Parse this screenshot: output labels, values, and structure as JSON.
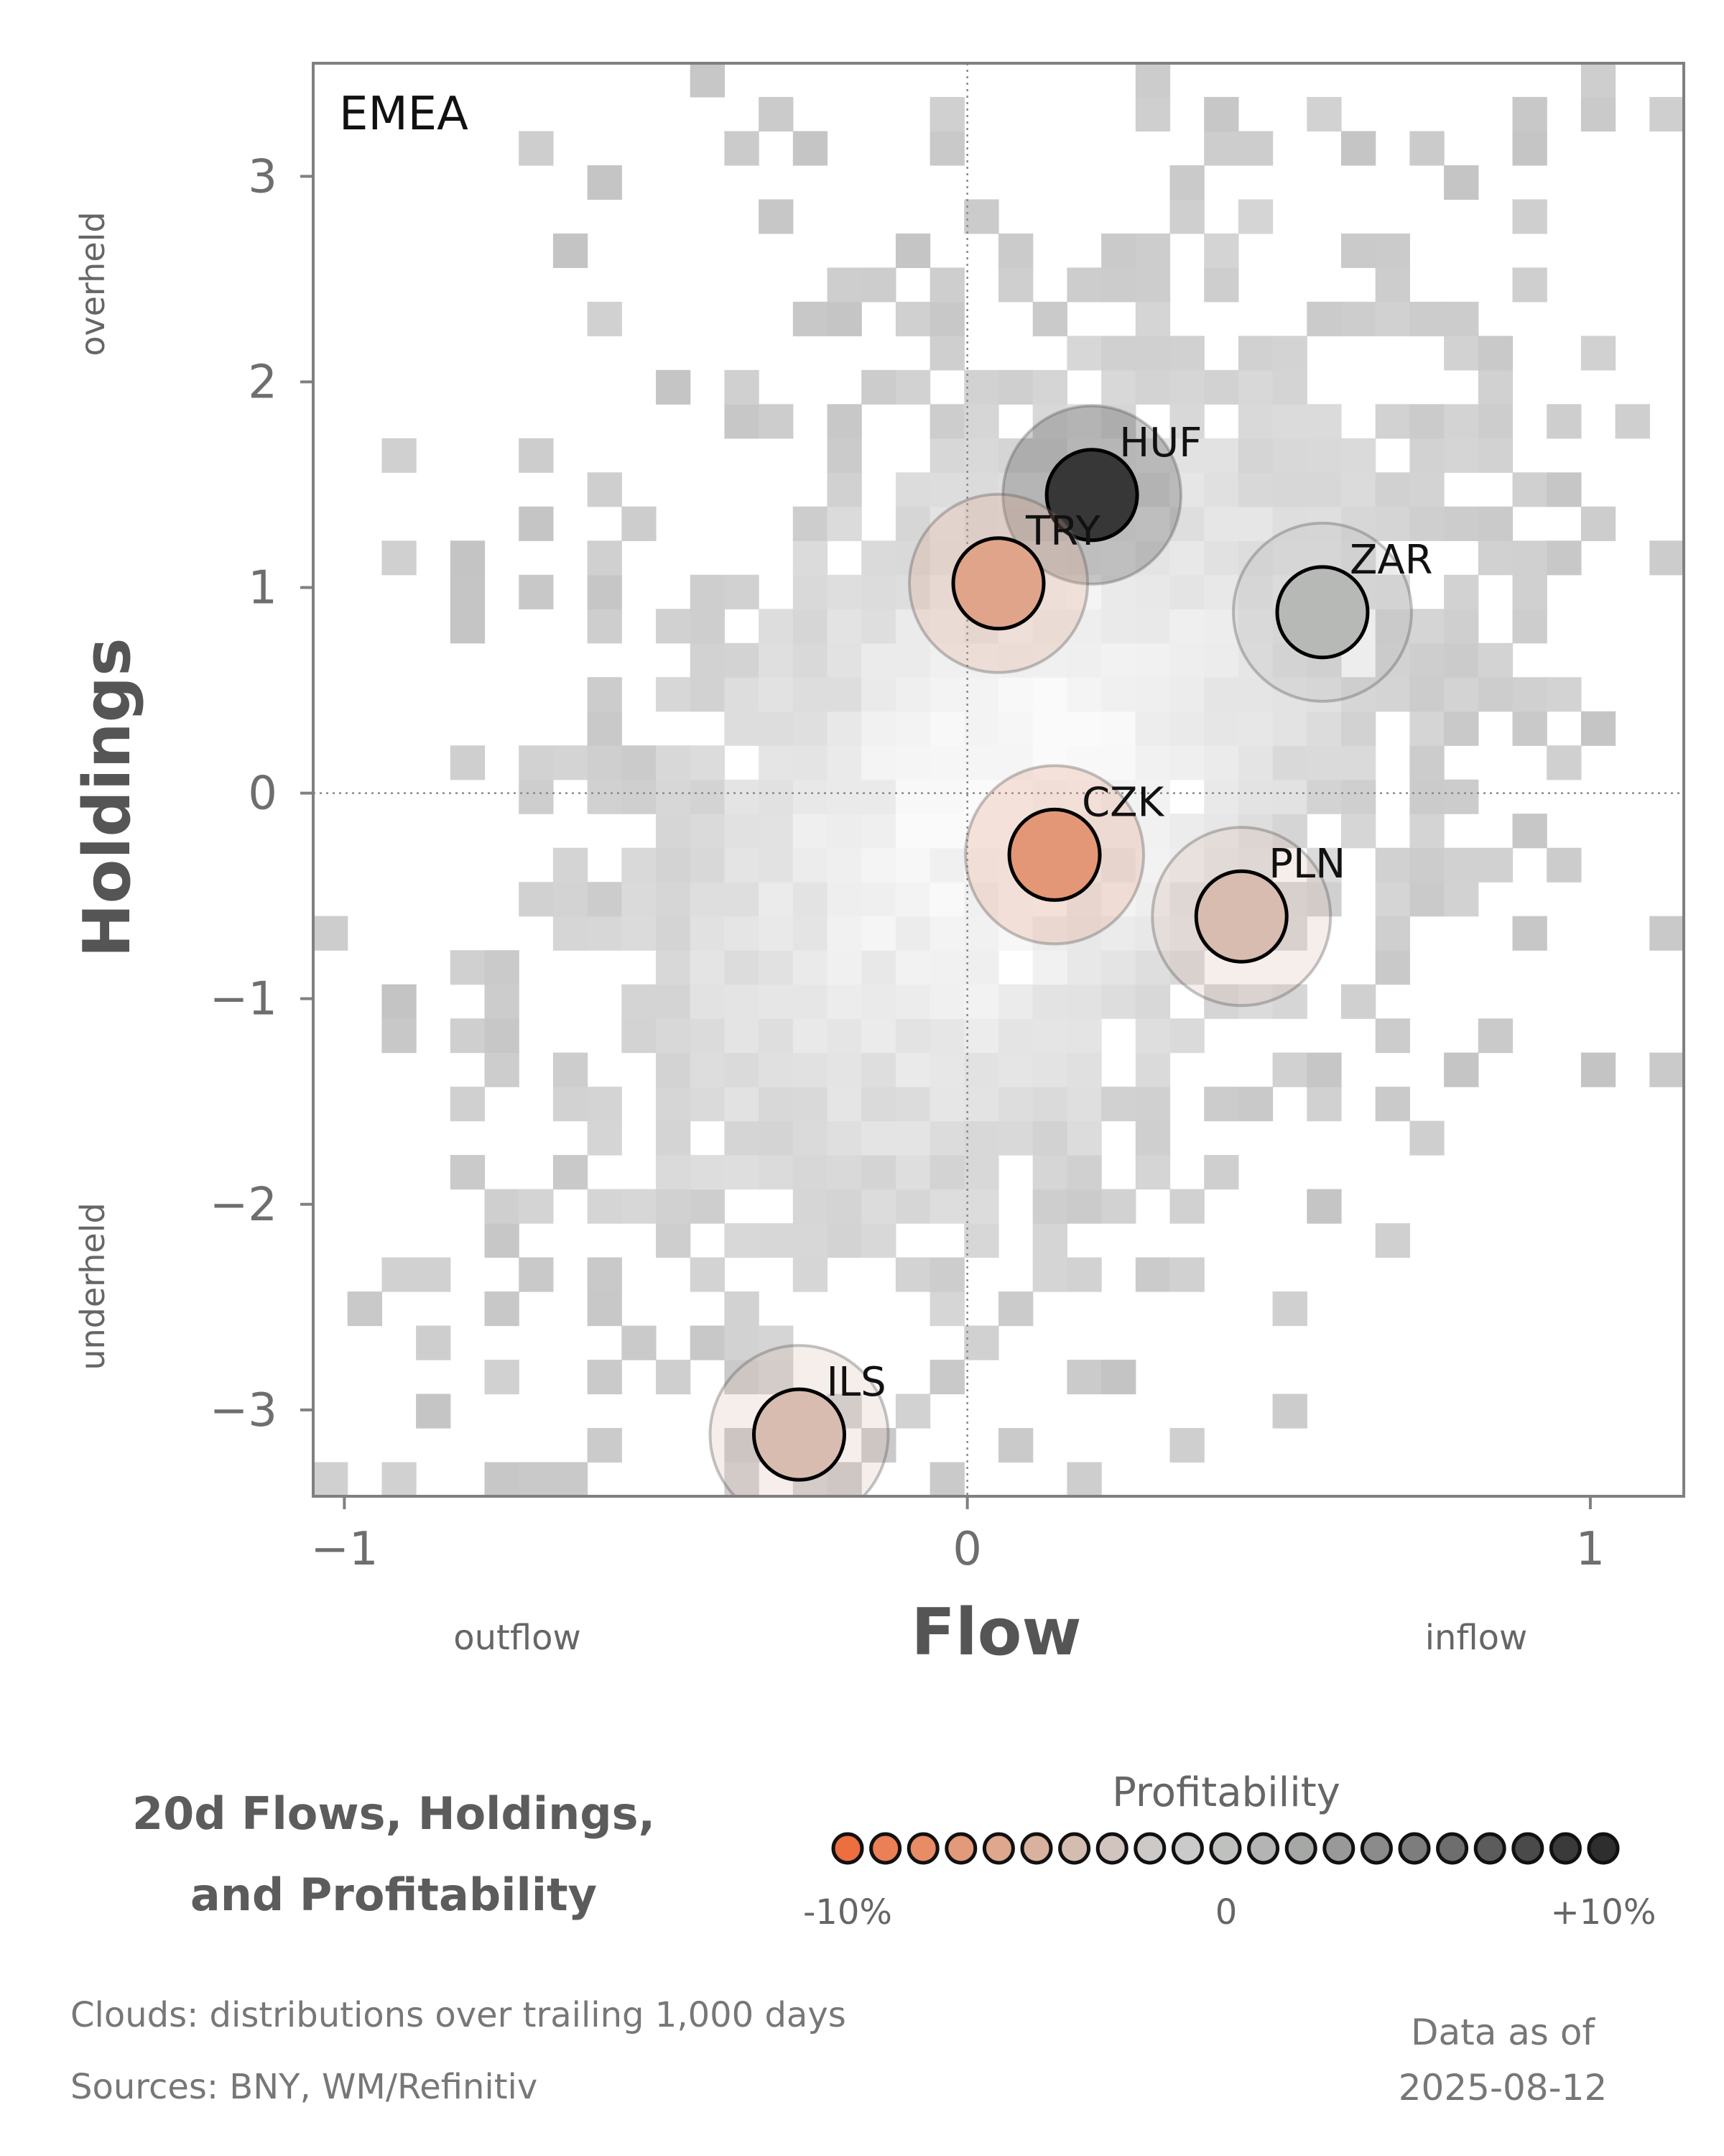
{
  "chart_data": {
    "type": "scatter",
    "panel_label": "EMEA",
    "xlabel": "Flow",
    "ylabel": "Holdings",
    "xlim": [
      -1.05,
      1.15
    ],
    "ylim": [
      -3.42,
      3.55
    ],
    "x_ticks": [
      -1,
      0,
      1
    ],
    "y_ticks": [
      -3,
      -2,
      -1,
      0,
      1,
      2,
      3
    ],
    "x_tick_labels": [
      "−1",
      "0",
      "1"
    ],
    "y_tick_labels": [
      "−3",
      "−2",
      "−1",
      "0",
      "1",
      "2",
      "3"
    ],
    "x_annotations": {
      "low": "outflow",
      "high": "inflow"
    },
    "y_annotations": {
      "low": "underheld",
      "high": "overheld"
    },
    "reference_lines": {
      "x": 0,
      "y": 0,
      "style": "dotted"
    },
    "points": [
      {
        "label": "HUF",
        "x": 0.2,
        "y": 1.45,
        "profitability": 10,
        "color": "#373737"
      },
      {
        "label": "TRY",
        "x": 0.05,
        "y": 1.02,
        "profitability": -6,
        "color": "#e0a48a"
      },
      {
        "label": "ZAR",
        "x": 0.57,
        "y": 0.88,
        "profitability": 3,
        "color": "#b7b9b6"
      },
      {
        "label": "CZK",
        "x": 0.14,
        "y": -0.3,
        "profitability": -7,
        "color": "#e49776"
      },
      {
        "label": "PLN",
        "x": 0.44,
        "y": -0.6,
        "profitability": -2,
        "color": "#d8bcaf"
      },
      {
        "label": "ILS",
        "x": -0.27,
        "y": -3.12,
        "profitability": -2,
        "color": "#d8bcaf"
      }
    ],
    "background": "2D density heatmap of trailing distributions (grey cloud)",
    "grid": false
  },
  "legend": {
    "title": "Profitability",
    "min_label": "-10%",
    "mid_label": "0",
    "max_label": "+10%",
    "swatches": [
      "#ed6e3f",
      "#eb7f55",
      "#e88c66",
      "#e39a7a",
      "#dfa78d",
      "#d9b29f",
      "#d5bcb1",
      "#d1c3bd",
      "#cdc9c6",
      "#c9cac9",
      "#bfc1bf",
      "#b3b4b3",
      "#a6a8a6",
      "#999999",
      "#8b8b8b",
      "#7d7d7d",
      "#6e6e6e",
      "#5c5c5c",
      "#4a4a4a",
      "#3a3a3a",
      "#2e2e2e"
    ]
  },
  "title": {
    "line1": "20d Flows, Holdings,",
    "line2": "and Profitability"
  },
  "footer": {
    "clouds_note": "Clouds:  distributions over trailing 1,000 days",
    "sources": "Sources:  BNY, WM/Refinitiv",
    "asof_label": "Data as of",
    "asof_date": "2025-08-12"
  }
}
